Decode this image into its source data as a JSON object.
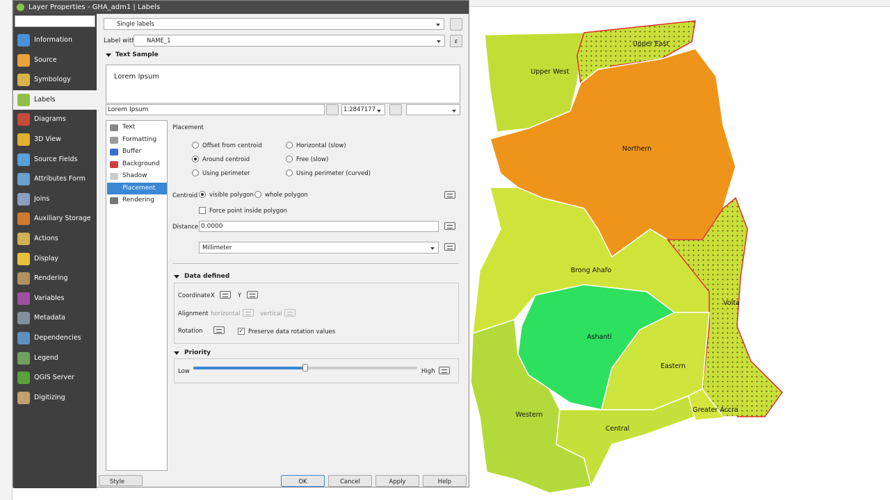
{
  "window": {
    "title": "Layer Properties - GHA_adm1 | Labels"
  },
  "sidebar": [
    "Information",
    "Source",
    "Symbology",
    "Labels",
    "Diagrams",
    "3D View",
    "Source Fields",
    "Attributes Form",
    "Joins",
    "Auxiliary Storage",
    "Actions",
    "Display",
    "Rendering",
    "Variables",
    "Metadata",
    "Dependencies",
    "Legend",
    "QGIS Server",
    "Digitizing"
  ],
  "labels": {
    "mode": "Single labels",
    "label_with": "Label with",
    "field": "NAME_1",
    "text_sample": {
      "heading": "Text Sample",
      "preview": "Lorem Ipsum",
      "input": "Lorem Ipsum",
      "scale": "1:2847177"
    }
  },
  "tabs": [
    "Text",
    "Formatting",
    "Buffer",
    "Background",
    "Shadow",
    "Placement",
    "Rendering"
  ],
  "placement": {
    "heading": "Placement",
    "options": [
      "Offset from centroid",
      "Around centroid",
      "Using perimeter",
      "Horizontal (slow)",
      "Free (slow)",
      "Using perimeter (curved)"
    ],
    "centroid_label": "Centroid",
    "centroid_options": [
      "visible polygon",
      "whole polygon"
    ],
    "force_point": "Force point inside polygon",
    "distance_label": "Distance",
    "distance_value": "0.0000",
    "unit": "Millimeter"
  },
  "data_defined": {
    "heading": "Data defined",
    "coordinate": "Coordinate",
    "x": "X",
    "y": "Y",
    "alignment": "Alignment",
    "horizontal": "horizontal",
    "vertical": "vertical",
    "rotation": "Rotation",
    "preserve": "Preserve data rotation values"
  },
  "priority": {
    "heading": "Priority",
    "low": "Low",
    "high": "High"
  },
  "buttons": {
    "style": "Style",
    "ok": "OK",
    "cancel": "Cancel",
    "apply": "Apply",
    "help": "Help"
  },
  "map": {
    "regions": [
      "Upper East",
      "Upper West",
      "Northern",
      "Brong Ahafo",
      "Volta",
      "Ashanti",
      "Eastern",
      "Western",
      "Greater Accra",
      "Central"
    ]
  }
}
